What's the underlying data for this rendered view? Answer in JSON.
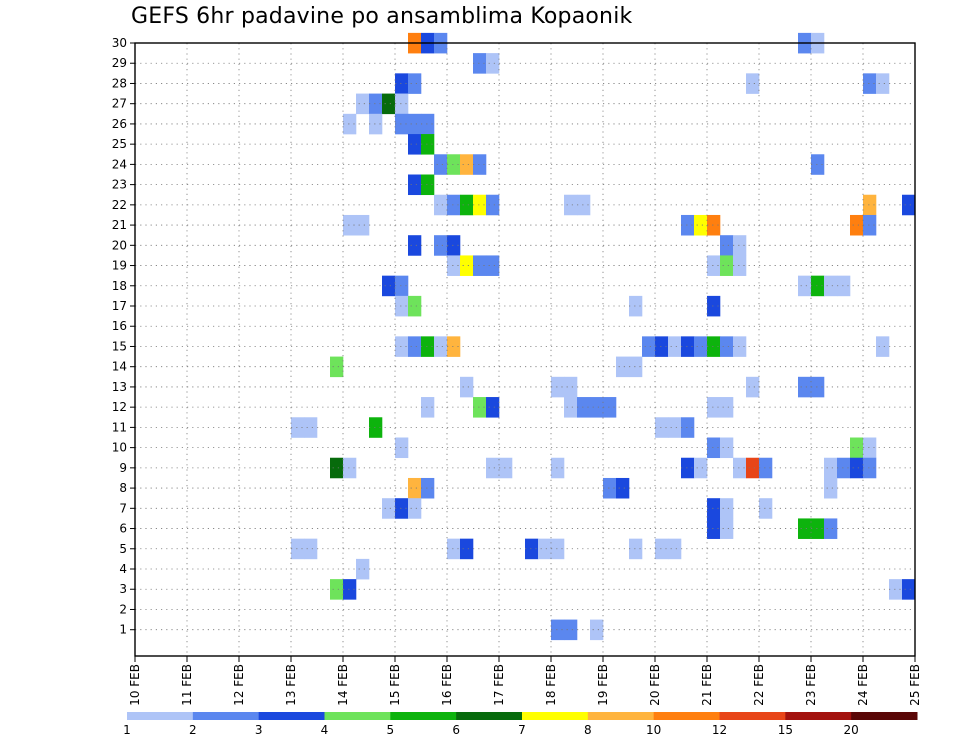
{
  "title": "GEFS 6hr padavine po ansamblima Kopaonik",
  "colors": {
    "c1": "#aec4f7",
    "c2": "#5b87ef",
    "c3": "#1a48de",
    "c4": "#6ee35b",
    "c5": "#0db30d",
    "c6": "#076b0c",
    "c7": "#ffff00",
    "c8": "#ffb43e",
    "c10": "#ff7f0f",
    "c12": "#e84518",
    "c15": "#a3120e",
    "c20": "#5a0707"
  },
  "chart_data": {
    "type": "heatmap",
    "title": "GEFS 6hr padavine po ansamblima Kopaonik",
    "x_tick_labels": [
      "10 FEB",
      "11 FEB",
      "12 FEB",
      "13 FEB",
      "14 FEB",
      "15 FEB",
      "16 FEB",
      "17 FEB",
      "18 FEB",
      "19 FEB",
      "20 FEB",
      "21 FEB",
      "22 FEB",
      "23 FEB",
      "24 FEB",
      "25 FEB"
    ],
    "y_tick_labels": [
      "1",
      "2",
      "3",
      "4",
      "5",
      "6",
      "7",
      "8",
      "9",
      "10",
      "11",
      "12",
      "13",
      "14",
      "15",
      "16",
      "17",
      "18",
      "19",
      "20",
      "21",
      "22",
      "23",
      "24",
      "25",
      "26",
      "27",
      "28",
      "29",
      "30"
    ],
    "x_range_days": [
      0,
      15
    ],
    "y_range": [
      0,
      30
    ],
    "grid": true,
    "cell_duration_hours": 6,
    "legend_labels": [
      "1",
      "2",
      "3",
      "4",
      "5",
      "6",
      "7",
      "8",
      "10",
      "12",
      "15",
      "20"
    ],
    "legend_keys": [
      "c1",
      "c2",
      "c3",
      "c4",
      "c5",
      "c6",
      "c7",
      "c8",
      "c10",
      "c12",
      "c15",
      "c20"
    ],
    "cells": [
      {
        "row": 30,
        "x": [
          [
            5.25,
            "c10"
          ],
          [
            5.5,
            "c3"
          ],
          [
            5.75,
            "c2"
          ],
          [
            12.75,
            "c2"
          ],
          [
            13.0,
            "c1"
          ]
        ]
      },
      {
        "row": 29,
        "x": [
          [
            6.5,
            "c2"
          ],
          [
            6.75,
            "c1"
          ]
        ]
      },
      {
        "row": 28,
        "x": [
          [
            5.0,
            "c3"
          ],
          [
            5.25,
            "c2"
          ],
          [
            11.75,
            "c1"
          ],
          [
            14.0,
            "c2"
          ],
          [
            14.25,
            "c1"
          ]
        ]
      },
      {
        "row": 27,
        "x": [
          [
            4.25,
            "c1"
          ],
          [
            4.5,
            "c2"
          ],
          [
            4.75,
            "c6"
          ],
          [
            5.0,
            "c1"
          ]
        ]
      },
      {
        "row": 26,
        "x": [
          [
            4.0,
            "c1"
          ],
          [
            4.5,
            "c1"
          ],
          [
            5.0,
            "c2"
          ],
          [
            5.25,
            "c2"
          ],
          [
            5.5,
            "c2"
          ]
        ]
      },
      {
        "row": 25,
        "x": [
          [
            5.25,
            "c3"
          ],
          [
            5.5,
            "c5"
          ]
        ]
      },
      {
        "row": 24,
        "x": [
          [
            5.75,
            "c2"
          ],
          [
            6.0,
            "c4"
          ],
          [
            6.25,
            "c8"
          ],
          [
            6.5,
            "c2"
          ],
          [
            13.0,
            "c2"
          ]
        ]
      },
      {
        "row": 23,
        "x": [
          [
            5.25,
            "c3"
          ],
          [
            5.5,
            "c5"
          ]
        ]
      },
      {
        "row": 22,
        "x": [
          [
            5.75,
            "c1"
          ],
          [
            6.0,
            "c2"
          ],
          [
            6.25,
            "c5"
          ],
          [
            6.5,
            "c7"
          ],
          [
            6.75,
            "c2"
          ],
          [
            8.25,
            "c1"
          ],
          [
            8.5,
            "c1"
          ],
          [
            14.0,
            "c8"
          ],
          [
            14.75,
            "c3"
          ]
        ]
      },
      {
        "row": 21,
        "x": [
          [
            4.0,
            "c1"
          ],
          [
            4.25,
            "c1"
          ],
          [
            10.5,
            "c2"
          ],
          [
            10.75,
            "c7"
          ],
          [
            11.0,
            "c10"
          ],
          [
            13.75,
            "c10"
          ],
          [
            14.0,
            "c2"
          ]
        ]
      },
      {
        "row": 20,
        "x": [
          [
            5.25,
            "c3"
          ],
          [
            5.75,
            "c2"
          ],
          [
            6.0,
            "c3"
          ],
          [
            11.25,
            "c2"
          ],
          [
            11.5,
            "c1"
          ]
        ]
      },
      {
        "row": 19,
        "x": [
          [
            6.0,
            "c1"
          ],
          [
            6.25,
            "c7"
          ],
          [
            6.5,
            "c2"
          ],
          [
            6.75,
            "c2"
          ],
          [
            11.0,
            "c1"
          ],
          [
            11.25,
            "c4"
          ],
          [
            11.5,
            "c1"
          ]
        ]
      },
      {
        "row": 18,
        "x": [
          [
            4.75,
            "c3"
          ],
          [
            5.0,
            "c2"
          ],
          [
            12.75,
            "c1"
          ],
          [
            13.0,
            "c5"
          ],
          [
            13.25,
            "c1"
          ],
          [
            13.5,
            "c1"
          ]
        ]
      },
      {
        "row": 17,
        "x": [
          [
            5.0,
            "c1"
          ],
          [
            5.25,
            "c4"
          ],
          [
            9.5,
            "c1"
          ],
          [
            11.0,
            "c3"
          ]
        ]
      },
      {
        "row": 15,
        "x": [
          [
            5.0,
            "c1"
          ],
          [
            5.25,
            "c2"
          ],
          [
            5.5,
            "c5"
          ],
          [
            5.75,
            "c1"
          ],
          [
            6.0,
            "c8"
          ],
          [
            9.75,
            "c2"
          ],
          [
            10.0,
            "c3"
          ],
          [
            10.25,
            "c1"
          ],
          [
            10.5,
            "c3"
          ],
          [
            10.75,
            "c2"
          ],
          [
            11.0,
            "c5"
          ],
          [
            11.25,
            "c2"
          ],
          [
            11.5,
            "c1"
          ],
          [
            14.25,
            "c1"
          ]
        ]
      },
      {
        "row": 14,
        "x": [
          [
            3.75,
            "c4"
          ],
          [
            9.25,
            "c1"
          ],
          [
            9.5,
            "c1"
          ]
        ]
      },
      {
        "row": 13,
        "x": [
          [
            6.25,
            "c1"
          ],
          [
            8.0,
            "c1"
          ],
          [
            8.25,
            "c1"
          ],
          [
            11.75,
            "c1"
          ],
          [
            12.75,
            "c2"
          ],
          [
            13.0,
            "c2"
          ]
        ]
      },
      {
        "row": 12,
        "x": [
          [
            5.5,
            "c1"
          ],
          [
            6.5,
            "c4"
          ],
          [
            6.75,
            "c3"
          ],
          [
            8.25,
            "c1"
          ],
          [
            8.5,
            "c2"
          ],
          [
            8.75,
            "c2"
          ],
          [
            9.0,
            "c2"
          ],
          [
            11.0,
            "c1"
          ],
          [
            11.25,
            "c1"
          ]
        ]
      },
      {
        "row": 11,
        "x": [
          [
            3.0,
            "c1"
          ],
          [
            3.25,
            "c1"
          ],
          [
            4.5,
            "c5"
          ],
          [
            10.0,
            "c1"
          ],
          [
            10.25,
            "c1"
          ],
          [
            10.5,
            "c2"
          ]
        ]
      },
      {
        "row": 10,
        "x": [
          [
            5.0,
            "c1"
          ],
          [
            11.0,
            "c2"
          ],
          [
            11.25,
            "c1"
          ],
          [
            13.75,
            "c4"
          ],
          [
            14.0,
            "c1"
          ]
        ]
      },
      {
        "row": 9,
        "x": [
          [
            3.75,
            "c6"
          ],
          [
            4.0,
            "c1"
          ],
          [
            6.75,
            "c1"
          ],
          [
            7.0,
            "c1"
          ],
          [
            8.0,
            "c1"
          ],
          [
            10.5,
            "c3"
          ],
          [
            10.75,
            "c1"
          ],
          [
            11.5,
            "c1"
          ],
          [
            11.75,
            "c12"
          ],
          [
            12.0,
            "c2"
          ],
          [
            13.25,
            "c1"
          ],
          [
            13.5,
            "c2"
          ],
          [
            13.75,
            "c3"
          ],
          [
            14.0,
            "c2"
          ]
        ]
      },
      {
        "row": 8,
        "x": [
          [
            5.25,
            "c8"
          ],
          [
            5.5,
            "c2"
          ],
          [
            9.0,
            "c2"
          ],
          [
            9.25,
            "c3"
          ],
          [
            13.25,
            "c1"
          ]
        ]
      },
      {
        "row": 7,
        "x": [
          [
            4.75,
            "c1"
          ],
          [
            5.0,
            "c3"
          ],
          [
            5.25,
            "c1"
          ],
          [
            11.0,
            "c3"
          ],
          [
            11.25,
            "c1"
          ],
          [
            12.0,
            "c1"
          ]
        ]
      },
      {
        "row": 6,
        "x": [
          [
            11.0,
            "c3"
          ],
          [
            11.25,
            "c1"
          ],
          [
            12.75,
            "c5"
          ],
          [
            13.0,
            "c5"
          ],
          [
            13.25,
            "c2"
          ]
        ]
      },
      {
        "row": 5,
        "x": [
          [
            3.0,
            "c1"
          ],
          [
            3.25,
            "c1"
          ],
          [
            6.0,
            "c1"
          ],
          [
            6.25,
            "c3"
          ],
          [
            7.5,
            "c3"
          ],
          [
            7.75,
            "c1"
          ],
          [
            8.0,
            "c1"
          ],
          [
            9.5,
            "c1"
          ],
          [
            10.0,
            "c1"
          ],
          [
            10.25,
            "c1"
          ]
        ]
      },
      {
        "row": 4,
        "x": [
          [
            4.25,
            "c1"
          ]
        ]
      },
      {
        "row": 3,
        "x": [
          [
            3.75,
            "c4"
          ],
          [
            4.0,
            "c3"
          ],
          [
            14.5,
            "c1"
          ],
          [
            14.75,
            "c3"
          ]
        ]
      },
      {
        "row": 1,
        "x": [
          [
            8.0,
            "c2"
          ],
          [
            8.25,
            "c2"
          ],
          [
            8.75,
            "c1"
          ]
        ]
      }
    ]
  }
}
